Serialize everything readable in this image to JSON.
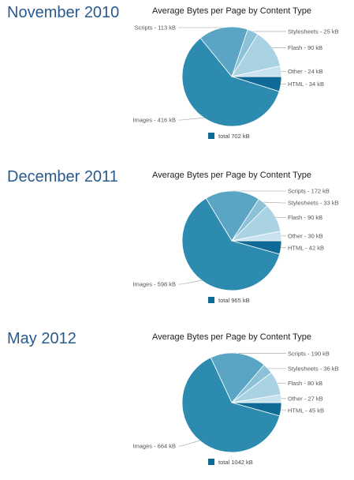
{
  "colors": {
    "Images": "#2e8bb0",
    "Scripts": "#5aa5c4",
    "Stylesheets": "#8cc2d8",
    "Flash": "#a9d2e3",
    "Other": "#c8e3ee",
    "HTML": "#0f6a96",
    "period_title": "#2a5a8c"
  },
  "chart_data": [
    {
      "type": "pie",
      "period": "November 2010",
      "title": "Average Bytes per Page by Content Type",
      "legend": "total 702 kB",
      "slices": [
        {
          "category": "HTML",
          "value": 34,
          "label": "HTML - 34 kB"
        },
        {
          "category": "Images",
          "value": 416,
          "label": "Images - 416 kB"
        },
        {
          "category": "Scripts",
          "value": 113,
          "label": "Scripts - 113 kB"
        },
        {
          "category": "Stylesheets",
          "value": 25,
          "label": "Stylesheets - 25 kB"
        },
        {
          "category": "Flash",
          "value": 90,
          "label": "Flash - 90 kB"
        },
        {
          "category": "Other",
          "value": 24,
          "label": "Other - 24 kB"
        }
      ]
    },
    {
      "type": "pie",
      "period": "December 2011",
      "title": "Average Bytes per Page by Content Type",
      "legend": "total 965 kB",
      "slices": [
        {
          "category": "HTML",
          "value": 42,
          "label": "HTML - 42 kB"
        },
        {
          "category": "Images",
          "value": 598,
          "label": "Images - 598 kB"
        },
        {
          "category": "Scripts",
          "value": 172,
          "label": "Scripts - 172 kB"
        },
        {
          "category": "Stylesheets",
          "value": 33,
          "label": "Stylesheets - 33 kB"
        },
        {
          "category": "Flash",
          "value": 90,
          "label": "Flash - 90 kB"
        },
        {
          "category": "Other",
          "value": 30,
          "label": "Other - 30 kB"
        }
      ]
    },
    {
      "type": "pie",
      "period": "May 2012",
      "title": "Average Bytes per Page by Content Type",
      "legend": "total 1042 kB",
      "slices": [
        {
          "category": "HTML",
          "value": 45,
          "label": "HTML - 45 kB"
        },
        {
          "category": "Images",
          "value": 664,
          "label": "Images - 664 kB"
        },
        {
          "category": "Scripts",
          "value": 190,
          "label": "Scripts - 190 kB"
        },
        {
          "category": "Stylesheets",
          "value": 36,
          "label": "Stylesheets - 36 kB"
        },
        {
          "category": "Flash",
          "value": 80,
          "label": "Flash - 80 kB"
        },
        {
          "category": "Other",
          "value": 27,
          "label": "Other - 27 kB"
        }
      ]
    }
  ]
}
